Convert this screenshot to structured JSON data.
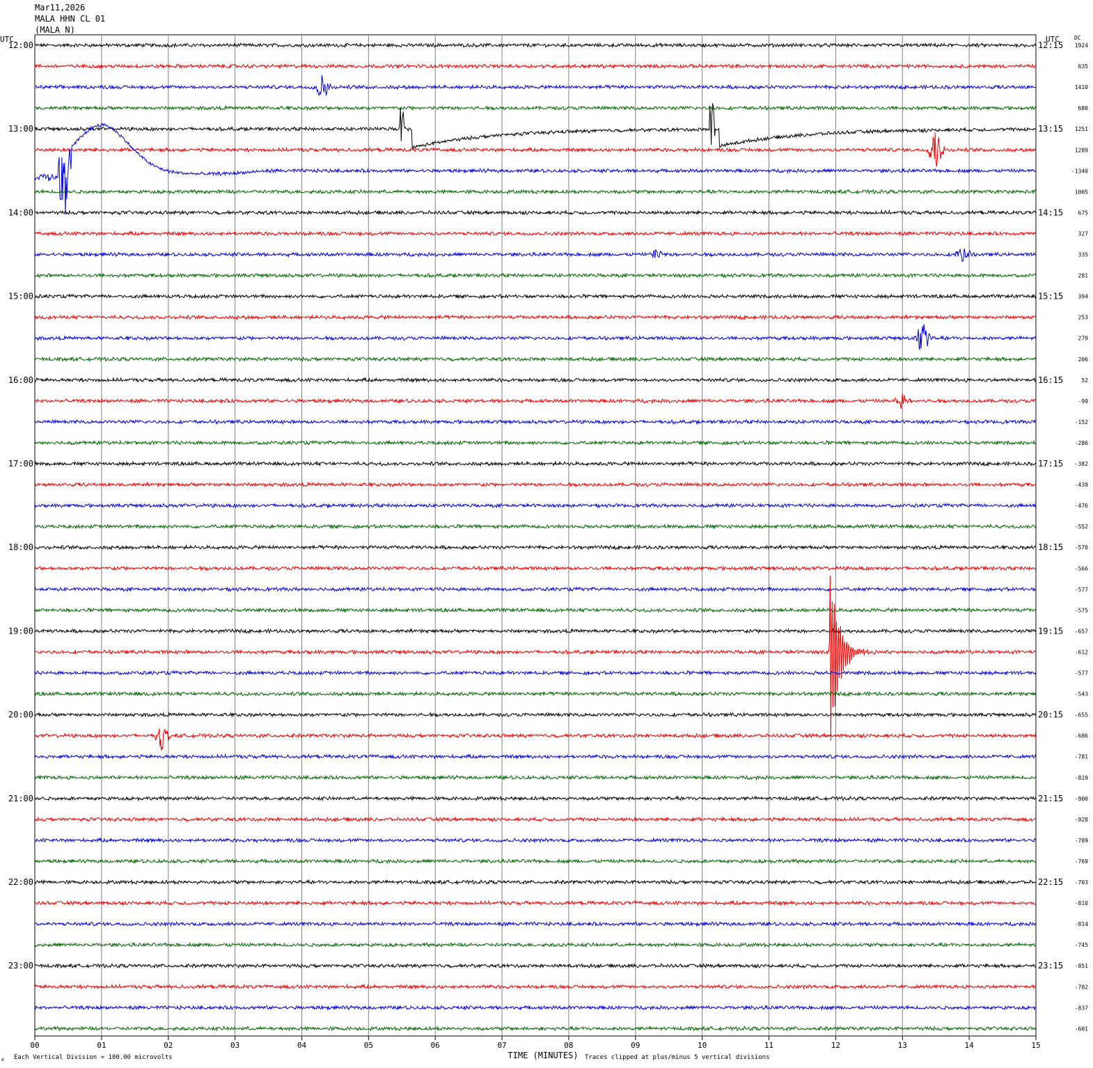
{
  "header": {
    "date": "Mar11,2026",
    "station": "MALA HHN CL 01",
    "network": "(MALA N)"
  },
  "left_axis_label": "UTC",
  "right_axis_label": "UTC",
  "dc_label": "DC",
  "footer": {
    "scale_note": "Each Vertical Division =  100.00 microvolts",
    "clip_note": "Traces clipped at plus/minus 5 vertical divisions",
    "marker": "A"
  },
  "colors": {
    "trace_cycle": [
      "#000000",
      "#ee0000",
      "#0000dd",
      "#006600"
    ],
    "grid": "#808080"
  },
  "chart_data": {
    "type": "line",
    "title": "",
    "xlabel": "TIME (MINUTES)",
    "ylabel": "",
    "xlim": [
      0,
      15
    ],
    "x_ticks": [
      "00",
      "01",
      "02",
      "03",
      "04",
      "05",
      "06",
      "07",
      "08",
      "09",
      "10",
      "11",
      "12",
      "13",
      "14",
      "15"
    ],
    "left_time_labels": [
      "12:00",
      "13:00",
      "14:00",
      "15:00",
      "16:00",
      "17:00",
      "18:00",
      "19:00",
      "20:00",
      "21:00",
      "22:00",
      "23:00"
    ],
    "right_time_labels": [
      "12:15",
      "13:15",
      "14:15",
      "15:15",
      "16:15",
      "17:15",
      "18:15",
      "19:15",
      "20:15",
      "21:15",
      "22:15",
      "23:15"
    ],
    "dc_offsets": [
      "1924",
      "635",
      "1410",
      "680",
      "1251",
      "1289",
      "-1340",
      "1005",
      "675",
      "327",
      "335",
      "281",
      "394",
      "253",
      "279",
      "206",
      "52",
      "-99",
      "-152",
      "-286",
      "-382",
      "-439",
      "-476",
      "-552",
      "-570",
      "-566",
      "-577",
      "-575",
      "-657",
      "-612",
      "-577",
      "-543",
      "-655",
      "-686",
      "-781",
      "-819",
      "-900",
      "-928",
      "-789",
      "-769",
      "-703",
      "-810",
      "-814",
      "-745",
      "-851",
      "-782",
      "-837",
      "-601"
    ],
    "trace_minutes": 15,
    "clip_divisions": 5,
    "events": [
      {
        "trace": 2,
        "minute": 4.3,
        "amp": 1.2,
        "kind": "burst"
      },
      {
        "trace": 4,
        "minute": 5.5,
        "amp": 1.2,
        "kind": "spike"
      },
      {
        "trace": 4,
        "minute": 5.65,
        "amp": 1.0,
        "kind": "drift"
      },
      {
        "trace": 4,
        "minute": 10.15,
        "amp": 1.5,
        "kind": "spike"
      },
      {
        "trace": 4,
        "minute": 10.25,
        "amp": 0.9,
        "kind": "drift"
      },
      {
        "trace": 5,
        "minute": 13.5,
        "amp": 2.0,
        "kind": "burst"
      },
      {
        "trace": 6,
        "minute": 0.0,
        "amp": 5.0,
        "kind": "blue-swell"
      },
      {
        "trace": 10,
        "minute": 9.3,
        "amp": 0.6,
        "kind": "burst"
      },
      {
        "trace": 10,
        "minute": 13.9,
        "amp": 0.8,
        "kind": "burst"
      },
      {
        "trace": 14,
        "minute": 13.3,
        "amp": 1.8,
        "kind": "burst"
      },
      {
        "trace": 17,
        "minute": 13.0,
        "amp": 0.8,
        "kind": "burst"
      },
      {
        "trace": 29,
        "minute": 11.9,
        "amp": 5.0,
        "kind": "quake"
      },
      {
        "trace": 33,
        "minute": 1.9,
        "amp": 1.5,
        "kind": "burst"
      }
    ]
  }
}
